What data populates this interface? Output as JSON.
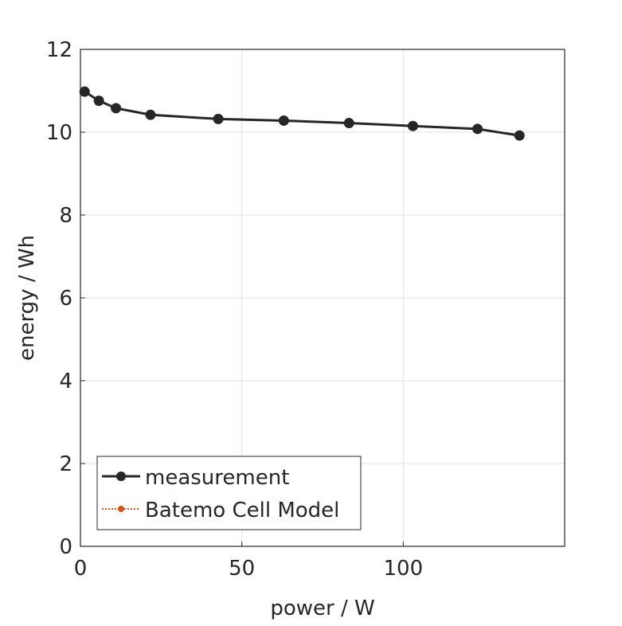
{
  "chart_data": {
    "type": "line",
    "title": "",
    "xlabel": "power / W",
    "ylabel": "energy / Wh",
    "xlim": [
      0,
      150
    ],
    "ylim": [
      0,
      12
    ],
    "xticks": [
      0,
      50,
      100
    ],
    "yticks": [
      0,
      2,
      4,
      6,
      8,
      10,
      12
    ],
    "grid": true,
    "legend_position": "bottom-left",
    "series": [
      {
        "name": "measurement",
        "color": "#262626",
        "style": "solid",
        "marker": "circle",
        "x": [
          1.3,
          5.7,
          11.0,
          21.7,
          42.7,
          63.0,
          83.2,
          103.0,
          123.0,
          136.0
        ],
        "y": [
          10.98,
          10.76,
          10.58,
          10.42,
          10.32,
          10.28,
          10.22,
          10.15,
          10.08,
          9.92
        ]
      },
      {
        "name": "Batemo Cell Model",
        "color": "#D95319",
        "style": "dotted",
        "marker": "circle",
        "x": [],
        "y": []
      }
    ]
  }
}
